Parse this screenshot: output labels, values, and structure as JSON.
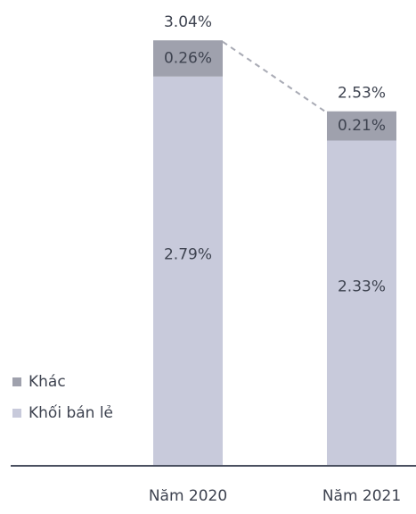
{
  "chart_data": {
    "type": "stacked_bar",
    "categories": [
      "Năm 2020",
      "Năm 2021"
    ],
    "series": [
      {
        "name": "Khối bán lẻ",
        "color": "#c8cadb",
        "values": [
          2.79,
          2.33
        ],
        "value_labels": [
          "2.79%",
          "2.33%"
        ]
      },
      {
        "name": "Khác",
        "color": "#9fa1ad",
        "values": [
          0.26,
          0.21
        ],
        "value_labels": [
          "0.26%",
          "0.21%"
        ]
      }
    ],
    "totals": [
      3.04,
      2.53
    ],
    "total_labels": [
      "3.04%",
      "2.53%"
    ]
  }
}
